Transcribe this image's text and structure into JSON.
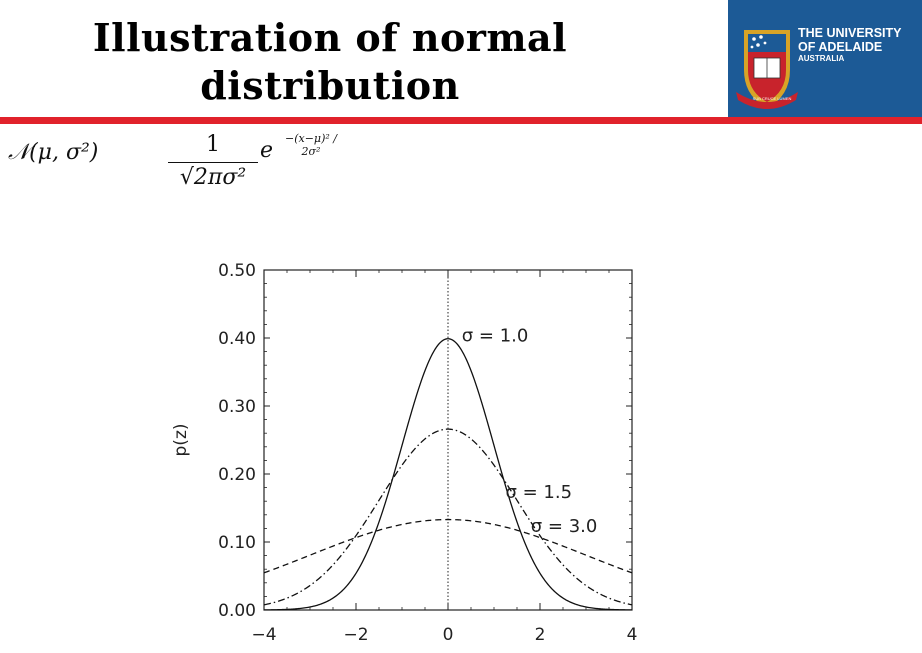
{
  "title": "Illustration of normal distribution",
  "logo": {
    "line1": "THE UNIVERSITY",
    "line2": "OF ADELAIDE",
    "line3": "AUSTRALIA",
    "motto": "SUB CRUCE LUMEN",
    "colors": {
      "background": "#1c5a96",
      "shield_gold": "#d8a326",
      "shield_red": "#c8232c"
    }
  },
  "accent_line_color": "#e1222b",
  "formula": {
    "label": "𝒩(μ, σ²)",
    "numerator": "1",
    "denominator": "√2πσ²",
    "base": "e",
    "exponent": "−(x−μ)² / 2σ²"
  },
  "chart_data": {
    "type": "line",
    "xlim": [
      -4,
      4
    ],
    "ylim": [
      0,
      0.5
    ],
    "xticks": [
      -4,
      -2,
      0,
      2,
      4
    ],
    "xtick_labels": [
      "−4",
      "−2",
      "0",
      "2",
      "4"
    ],
    "yticks": [
      0,
      0.1,
      0.2,
      0.3,
      0.4,
      0.5
    ],
    "ytick_labels": [
      "0.00",
      "0.10",
      "0.20",
      "0.30",
      "0.40",
      "0.50"
    ],
    "ylabel": "p(z)",
    "xlabel": "",
    "grid": false,
    "reference_line_x": 0,
    "series": [
      {
        "sigma": 1.0,
        "peak": 0.399,
        "style": "solid",
        "label": "σ = 1.0",
        "label_x": 0.3,
        "label_y": 0.395
      },
      {
        "sigma": 1.5,
        "peak": 0.266,
        "style": "dashdot",
        "label": "σ = 1.5",
        "label_x": 1.25,
        "label_y": 0.165
      },
      {
        "sigma": 3.0,
        "peak": 0.133,
        "style": "dashed",
        "label": "σ = 3.0",
        "label_x": 1.8,
        "label_y": 0.115
      }
    ]
  }
}
